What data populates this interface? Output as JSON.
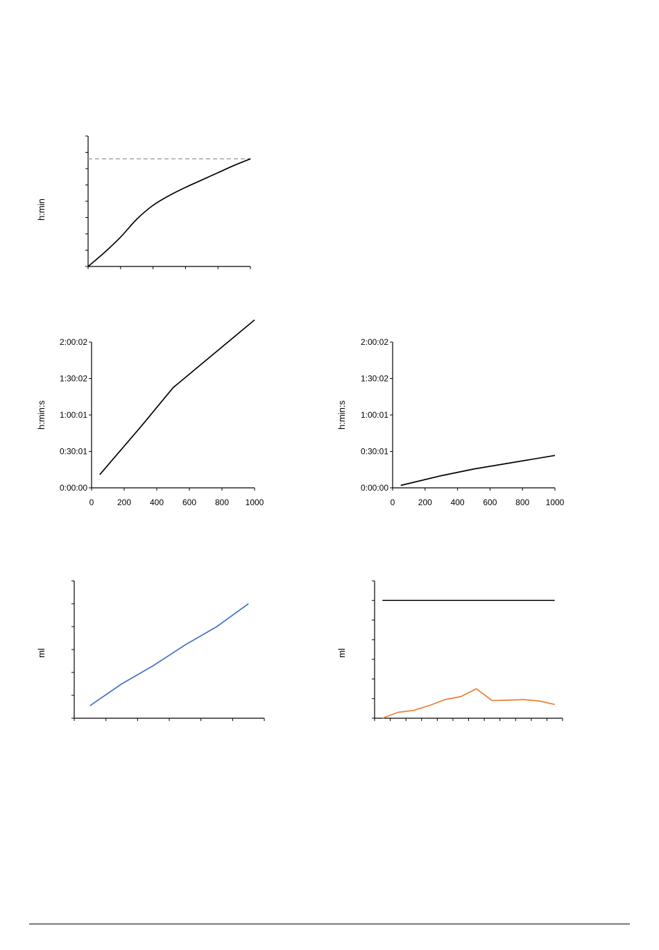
{
  "chart_data": [
    {
      "type": "line",
      "ylabel": "h:min",
      "xlabel": "",
      "xlim": [
        0,
        1000
      ],
      "ylim": [
        0,
        8
      ],
      "x_tick_count": 6,
      "y_tick_count": 9,
      "tick_labels_visible": false,
      "reference_line": {
        "y": 6.6,
        "style": "dashed",
        "color": "#a6a6a6"
      },
      "series": [
        {
          "color": "#000000",
          "x": [
            0,
            100,
            200,
            300,
            400,
            500,
            600,
            700,
            800,
            900,
            1000
          ],
          "y": [
            0,
            0.85,
            1.8,
            2.9,
            3.75,
            4.35,
            4.85,
            5.3,
            5.75,
            6.2,
            6.6
          ]
        }
      ]
    },
    {
      "type": "line",
      "ylabel": "h:min:s",
      "xlabel": "",
      "xlim": [
        0,
        1000
      ],
      "ylim": [
        0,
        7202
      ],
      "x_ticks": [
        0,
        200,
        400,
        600,
        800,
        1000
      ],
      "x_tick_labels": [
        "0",
        "200",
        "400",
        "600",
        "800",
        "1000"
      ],
      "y_ticks": [
        0,
        1801,
        3601,
        5402,
        7202
      ],
      "y_tick_labels": [
        "0:00:00",
        "0:30:01",
        "1:00:01",
        "1:30:02",
        "2:00:02"
      ],
      "series": [
        {
          "color": "#000000",
          "x": [
            50,
            300,
            500,
            1000
          ],
          "y": [
            650,
            3000,
            4950,
            8300
          ]
        }
      ]
    },
    {
      "type": "line",
      "ylabel": "h:min:s",
      "xlabel": "",
      "xlim": [
        0,
        1000
      ],
      "ylim": [
        0,
        7202
      ],
      "x_ticks": [
        0,
        200,
        400,
        600,
        800,
        1000
      ],
      "x_tick_labels": [
        "0",
        "200",
        "400",
        "600",
        "800",
        "1000"
      ],
      "y_ticks": [
        0,
        1801,
        3601,
        5402,
        7202
      ],
      "y_tick_labels": [
        "0:00:00",
        "0:30:01",
        "1:00:01",
        "1:30:02",
        "2:00:02"
      ],
      "series": [
        {
          "color": "#000000",
          "x": [
            50,
            300,
            500,
            1000
          ],
          "y": [
            120,
            600,
            930,
            1600
          ]
        }
      ]
    },
    {
      "type": "line",
      "ylabel": "ml",
      "xlabel": "",
      "xlim": [
        0,
        6
      ],
      "ylim": [
        0,
        6
      ],
      "x_tick_count": 7,
      "y_tick_count": 7,
      "tick_labels_visible": false,
      "series": [
        {
          "color": "#4472c4",
          "x": [
            0.5,
            1.5,
            2.5,
            3.5,
            4.5,
            5.5
          ],
          "y": [
            0.55,
            1.5,
            2.3,
            3.2,
            4.0,
            5.0
          ]
        }
      ]
    },
    {
      "type": "line",
      "ylabel": "ml",
      "xlabel": "",
      "xlim": [
        0,
        12
      ],
      "ylim": [
        0,
        7
      ],
      "x_tick_count": 13,
      "y_tick_count": 8,
      "tick_labels_visible": false,
      "reference_line": {
        "y": 6.0,
        "style": "solid",
        "color": "#000000"
      },
      "series": [
        {
          "color": "#ed7d31",
          "x": [
            0.5,
            1.5,
            2.5,
            3.5,
            4.5,
            5.5,
            6.5,
            7.5,
            8.5,
            9.5,
            10.5,
            11.5
          ],
          "y": [
            0.0,
            0.3,
            0.4,
            0.65,
            0.95,
            1.1,
            1.5,
            0.9,
            0.92,
            0.95,
            0.88,
            0.7
          ]
        }
      ]
    }
  ]
}
